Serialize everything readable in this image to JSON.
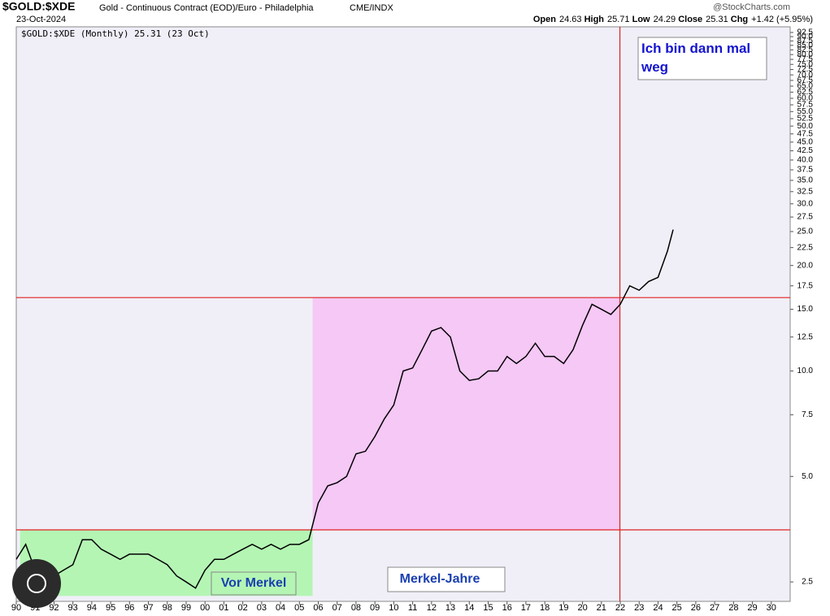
{
  "header": {
    "symbol": "$GOLD:$XDE",
    "description": "Gold - Continuous Contract (EOD)/Euro - Philadelphia",
    "exchange": "CME/INDX",
    "date": "23-Oct-2024",
    "source": "@StockCharts.com",
    "quote": [
      {
        "label": "Open",
        "value": 24.63
      },
      {
        "label": "High",
        "value": 25.71
      },
      {
        "label": "Low",
        "value": 24.29
      },
      {
        "label": "Close",
        "value": 25.31
      },
      {
        "label": "Chg",
        "value": "+1.42 (+5.95%)"
      }
    ],
    "legend": "$GOLD:$XDE (Monthly) 25.31 (23 Oct)"
  },
  "chart_data": {
    "type": "line",
    "log_scale": true,
    "xlim": [
      1990,
      2031
    ],
    "ylim": [
      2.2,
      96
    ],
    "xticks": [
      {
        "value": 1990,
        "label": "90"
      },
      {
        "value": 1991,
        "label": "91"
      },
      {
        "value": 1992,
        "label": "92"
      },
      {
        "value": 1993,
        "label": "93"
      },
      {
        "value": 1994,
        "label": "94"
      },
      {
        "value": 1995,
        "label": "95"
      },
      {
        "value": 1996,
        "label": "96"
      },
      {
        "value": 1997,
        "label": "97"
      },
      {
        "value": 1998,
        "label": "98"
      },
      {
        "value": 1999,
        "label": "99"
      },
      {
        "value": 2000,
        "label": "00"
      },
      {
        "value": 2001,
        "label": "01"
      },
      {
        "value": 2002,
        "label": "02"
      },
      {
        "value": 2003,
        "label": "03"
      },
      {
        "value": 2004,
        "label": "04"
      },
      {
        "value": 2005,
        "label": "05"
      },
      {
        "value": 2006,
        "label": "06"
      },
      {
        "value": 2007,
        "label": "07"
      },
      {
        "value": 2008,
        "label": "08"
      },
      {
        "value": 2009,
        "label": "09"
      },
      {
        "value": 2010,
        "label": "10"
      },
      {
        "value": 2011,
        "label": "11"
      },
      {
        "value": 2012,
        "label": "12"
      },
      {
        "value": 2013,
        "label": "13"
      },
      {
        "value": 2014,
        "label": "14"
      },
      {
        "value": 2015,
        "label": "15"
      },
      {
        "value": 2016,
        "label": "16"
      },
      {
        "value": 2017,
        "label": "17"
      },
      {
        "value": 2018,
        "label": "18"
      },
      {
        "value": 2019,
        "label": "19"
      },
      {
        "value": 2020,
        "label": "20"
      },
      {
        "value": 2021,
        "label": "21"
      },
      {
        "value": 2022,
        "label": "22"
      },
      {
        "value": 2023,
        "label": "23"
      },
      {
        "value": 2024,
        "label": "24"
      },
      {
        "value": 2025,
        "label": "25"
      },
      {
        "value": 2026,
        "label": "26"
      },
      {
        "value": 2027,
        "label": "27"
      },
      {
        "value": 2028,
        "label": "28"
      },
      {
        "value": 2029,
        "label": "29"
      },
      {
        "value": 2030,
        "label": "30"
      }
    ],
    "yticks": [
      2.5,
      {
        "value": 5,
        "label": "5.0"
      },
      7.5,
      {
        "value": 10,
        "label": "10.0"
      },
      12.5,
      {
        "value": 15,
        "label": "15.0"
      },
      17.5,
      {
        "value": 20,
        "label": "20.0"
      },
      22.5,
      {
        "value": 25,
        "label": "25.0"
      },
      27.5,
      {
        "value": 30,
        "label": "30.0"
      },
      32.5,
      {
        "value": 35,
        "label": "35.0"
      },
      37.5,
      {
        "value": 40,
        "label": "40.0"
      },
      42.5,
      {
        "value": 45,
        "label": "45.0"
      },
      47.5,
      {
        "value": 50,
        "label": "50.0"
      },
      52.5,
      {
        "value": 55,
        "label": "55.0"
      },
      57.5,
      {
        "value": 60,
        "label": "60.0"
      },
      62.5,
      {
        "value": 65,
        "label": "65.0"
      },
      67.5,
      {
        "value": 70,
        "label": "70.0"
      },
      72.5,
      {
        "value": 75,
        "label": "75.0"
      },
      77.5,
      {
        "value": 80,
        "label": "80.0"
      },
      82.5,
      {
        "value": 85,
        "label": "85.0"
      },
      87.5,
      {
        "value": 90,
        "label": "90.0"
      },
      92.5
    ],
    "series": [
      {
        "color": "#000000",
        "x": [
          1990,
          1990.5,
          1991,
          1991.5,
          1992,
          1992.5,
          1993,
          1993.5,
          1994,
          1994.5,
          1995,
          1995.5,
          1996,
          1996.5,
          1997,
          1997.5,
          1998,
          1998.5,
          1999,
          1999.5,
          2000,
          2000.5,
          2001,
          2001.5,
          2002,
          2002.5,
          2003,
          2003.5,
          2004,
          2004.5,
          2005,
          2005.5,
          2006,
          2006.5,
          2007,
          2007.5,
          2008,
          2008.5,
          2009,
          2009.5,
          2010,
          2010.5,
          2011,
          2011.5,
          2012,
          2012.5,
          2013,
          2013.5,
          2014,
          2014.5,
          2015,
          2015.5,
          2016,
          2016.5,
          2017,
          2017.5,
          2018,
          2018.5,
          2019,
          2019.5,
          2020,
          2020.5,
          2021,
          2021.5,
          2022,
          2022.5,
          2023,
          2023.5,
          2024,
          2024.5,
          2024.8
        ],
        "values": [
          2.9,
          3.2,
          2.7,
          2.5,
          2.6,
          2.7,
          2.8,
          3.3,
          3.3,
          3.1,
          3.0,
          2.9,
          3.0,
          3.0,
          3.0,
          2.9,
          2.8,
          2.6,
          2.5,
          2.4,
          2.7,
          2.9,
          2.9,
          3.0,
          3.1,
          3.2,
          3.1,
          3.2,
          3.1,
          3.2,
          3.2,
          3.3,
          4.2,
          4.7,
          4.8,
          5.0,
          5.8,
          5.9,
          6.5,
          7.3,
          8.0,
          10.0,
          10.2,
          11.5,
          13.0,
          13.3,
          12.5,
          10.0,
          9.4,
          9.5,
          10.0,
          10.0,
          11.0,
          10.5,
          11.0,
          12.0,
          11.0,
          11.0,
          10.5,
          11.5,
          13.5,
          15.5,
          15.0,
          14.5,
          15.5,
          17.5,
          17.0,
          18.0,
          18.5,
          22.0,
          25.31
        ]
      }
    ],
    "hlines": [
      16.2,
      3.52
    ],
    "vlines": [
      2021.98
    ],
    "regions": [
      {
        "color": "#b4f5b4",
        "xlim": [
          1990.2,
          2005.7
        ],
        "ylim": [
          2.28,
          3.52
        ]
      },
      {
        "color": "#f5c8f5",
        "xlim": [
          2005.7,
          2021.98
        ],
        "ylim": [
          3.52,
          16.2
        ]
      }
    ],
    "annotations": [
      "Vor Merkel",
      "Merkel-Jahre",
      "Ich bin dann mal weg"
    ]
  }
}
